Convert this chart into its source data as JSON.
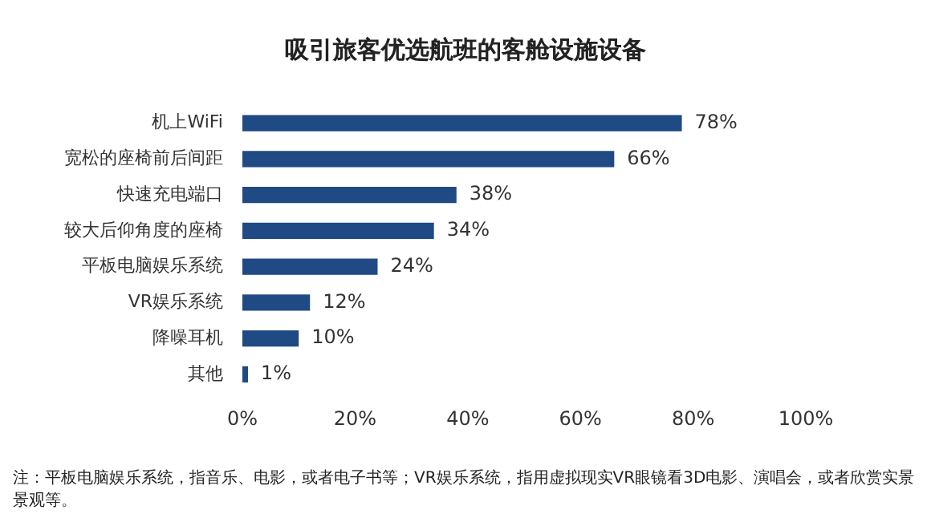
{
  "chart_data": {
    "type": "bar",
    "orientation": "horizontal",
    "title": "吸引旅客优选航班的客舱设施设备",
    "categories": [
      "机上WiFi",
      "宽松的座椅前后间距",
      "快速充电端口",
      "较大后仰角度的座椅",
      "平板电脑娱乐系统",
      "VR娱乐系统",
      "降噪耳机",
      "其他"
    ],
    "values": [
      78,
      66,
      38,
      34,
      24,
      12,
      10,
      1
    ],
    "value_labels": [
      "78%",
      "66%",
      "38%",
      "34%",
      "24%",
      "12%",
      "10%",
      "1%"
    ],
    "color": "#1f4a84",
    "xlim": [
      0,
      100
    ],
    "xticks": [
      {
        "value": 0,
        "label": "0%"
      },
      {
        "value": 20,
        "label": "20%"
      },
      {
        "value": 40,
        "label": "40%"
      },
      {
        "value": 60,
        "label": "60%"
      },
      {
        "value": 80,
        "label": "80%"
      },
      {
        "value": 100,
        "label": "100%"
      }
    ],
    "grid": false,
    "legend": false,
    "annotations": [
      "注：平板电脑娱乐系统，指音乐、电影，或者电子书等；VR娱乐系统，指用虚拟现实VR眼镜看3D电影、演唱会，或者欣赏实景景观等。"
    ]
  }
}
